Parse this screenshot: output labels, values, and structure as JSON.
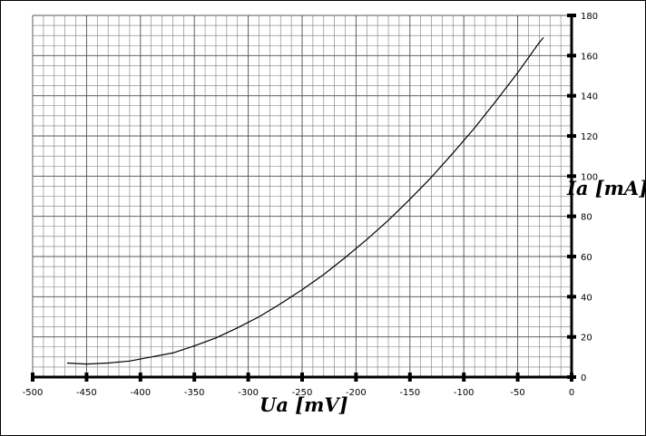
{
  "chart_data": {
    "type": "line",
    "xlabel": "Ua  [mV]",
    "ylabel": "Ia [mA]",
    "xlim": [
      -500,
      0
    ],
    "ylim": [
      0,
      180
    ],
    "x_ticks": [
      -500,
      -450,
      -400,
      -350,
      -300,
      -250,
      -200,
      -150,
      -100,
      -50,
      0
    ],
    "y_ticks": [
      0,
      20,
      40,
      60,
      80,
      100,
      120,
      140,
      160,
      180
    ],
    "x_tick_labels": [
      "-500",
      "-450",
      "-400",
      "-350",
      "-300",
      "-250",
      "-200",
      "-150",
      "-100",
      "-50",
      "0"
    ],
    "y_tick_labels": [
      "0",
      "20",
      "40",
      "60",
      "80",
      "100",
      "120",
      "140",
      "160",
      "180"
    ],
    "grid": true,
    "minor_grid_x_step": 10,
    "minor_grid_y_step": 5,
    "y_axis_position": "right",
    "series": [
      {
        "color": "#000000",
        "x": [
          -468,
          -450,
          -430,
          -410,
          -390,
          -370,
          -350,
          -330,
          -310,
          -290,
          -270,
          -250,
          -230,
          -210,
          -190,
          -170,
          -150,
          -130,
          -110,
          -90,
          -70,
          -50,
          -30,
          -26
        ],
        "y": [
          7,
          6.5,
          7,
          8,
          10,
          12,
          15.5,
          19.5,
          24.5,
          30,
          36.5,
          43.5,
          51,
          59.5,
          68.5,
          78,
          88.5,
          99.5,
          111.5,
          124,
          137.5,
          151.5,
          166.5,
          169
        ]
      }
    ]
  }
}
